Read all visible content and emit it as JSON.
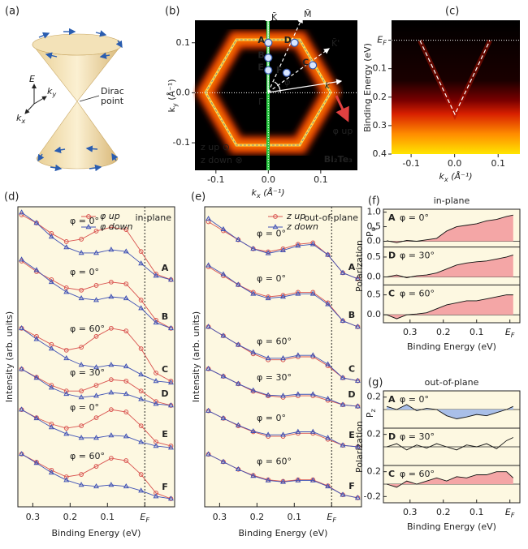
{
  "panel_a": {
    "label": "(a)",
    "energy_axis": "E",
    "ky_axis": {
      "main": "k",
      "sub": "y"
    },
    "kx_axis": {
      "main": "k",
      "sub": "x"
    },
    "dirac_point": [
      "Dirac",
      "point"
    ]
  },
  "panel_b": {
    "label": "(b)",
    "x_label": {
      "main": "k",
      "sub": "x",
      "rest": " (Å⁻¹)"
    },
    "y_label": {
      "main": "k",
      "sub": "y",
      "rest": " (Å⁻¹)"
    },
    "xlim": [
      -0.14,
      0.17
    ],
    "ylim": [
      -0.155,
      0.145
    ],
    "xticks": [
      -0.1,
      {
        "value": 0,
        "label": "0.0"
      },
      0.1
    ],
    "yticks": [
      0.1,
      {
        "value": 0,
        "label": "0.0"
      },
      -0.1
    ],
    "material": "Bi₂Te₃",
    "points": {
      "labels": [
        "A",
        "B",
        "E",
        "D",
        "F",
        "C"
      ],
      "kx": [
        0,
        0,
        0,
        0.05,
        0.035,
        0.085
      ],
      "ky": [
        0.1,
        0.07,
        0.045,
        0.1,
        0.04,
        0.055
      ]
    },
    "symbols": {
      "K": "K̄",
      "M": "M̄",
      "K_prime": "K̄'",
      "Gamma": "Γ̄",
      "phi": "φ",
      "k": "k",
      "phi_up": "φ up",
      "z_up": "z up ⊙",
      "z_down": "z down ⊗"
    }
  },
  "panel_c": {
    "label": "(c)",
    "x_label": {
      "main": "k",
      "sub": "x",
      "rest": " (Å⁻¹)"
    },
    "y_label": "Binding Energy (eV)",
    "xlim": [
      -0.145,
      0.15
    ],
    "ylim": [
      -0.07,
      0.4
    ],
    "xticks": [
      -0.1,
      {
        "value": 0,
        "label": "0.0"
      },
      0.1
    ],
    "yticks": [
      {
        "value": 0,
        "label": {
          "main": "E",
          "sub": "F"
        }
      },
      0.1,
      0.2,
      0.3,
      0.4
    ]
  },
  "panel_d": {
    "label": "(d)",
    "x_label": "Binding Energy (eV)",
    "y_label": "Intensity (arb. units)",
    "region": "in-plane",
    "series_names": [
      "φ up",
      "φ down"
    ],
    "colors": [
      "#d9534f",
      "#3f51b5"
    ],
    "markers": [
      "circle",
      "triangle"
    ],
    "xlim": [
      0.34,
      -0.08
    ],
    "ylim": [
      0,
      100
    ],
    "xticks": [
      0.3,
      0.2,
      0.1,
      {
        "value": 0,
        "label": {
          "main": "E",
          "sub": "F"
        }
      }
    ],
    "x": [
      0.33,
      0.29,
      0.25,
      0.21,
      0.17,
      0.13,
      0.09,
      0.05,
      0.01,
      -0.03,
      -0.07
    ],
    "spectra": [
      {
        "point": "A",
        "angle": "φ = 0°",
        "up": [
          97.3,
          94.6,
          91.1,
          88.4,
          89.2,
          91.9,
          93.2,
          92.4,
          85.1,
          77.6,
          75.7
        ],
        "down": [
          98.1,
          94.6,
          90.0,
          86.5,
          84.6,
          84.6,
          85.7,
          85.1,
          81.1,
          77.0,
          75.7
        ]
      },
      {
        "point": "B",
        "angle": "φ = 0°",
        "up": [
          81.9,
          78.4,
          75.7,
          73.0,
          72.2,
          73.8,
          74.9,
          74.3,
          68.9,
          62.2,
          59.5
        ],
        "down": [
          82.4,
          78.9,
          74.9,
          71.6,
          69.5,
          68.9,
          70.0,
          69.5,
          66.2,
          61.4,
          59.5
        ]
      },
      {
        "point": "C",
        "angle": "φ = 60°",
        "up": [
          59.5,
          56.8,
          54.1,
          52.2,
          53.2,
          56.8,
          59.5,
          58.6,
          52.7,
          44.6,
          41.9
        ],
        "down": [
          59.5,
          55.9,
          52.7,
          49.5,
          47.3,
          46.5,
          47.3,
          46.8,
          44.1,
          41.9,
          41.4
        ]
      },
      {
        "point": "D",
        "angle": "φ = 30°",
        "up": [
          45.9,
          43.2,
          40.5,
          38.6,
          38.6,
          40.5,
          42.4,
          41.9,
          38.6,
          35.1,
          33.8
        ],
        "down": [
          45.9,
          43.0,
          39.7,
          37.6,
          36.5,
          37.0,
          38.1,
          37.6,
          35.9,
          34.3,
          33.8
        ]
      },
      {
        "point": "E",
        "angle": "φ = 0°",
        "up": [
          32.4,
          29.7,
          27.6,
          26.2,
          27.0,
          29.7,
          32.4,
          31.6,
          27.0,
          21.6,
          20.3
        ],
        "down": [
          32.4,
          29.5,
          26.5,
          24.3,
          23.0,
          23.0,
          23.8,
          23.5,
          21.6,
          20.3,
          19.7
        ]
      },
      {
        "point": "F",
        "angle": "φ = 60°",
        "up": [
          17.6,
          14.9,
          12.2,
          10.0,
          10.8,
          13.5,
          16.2,
          15.4,
          10.8,
          4.6,
          2.7
        ],
        "down": [
          17.6,
          14.6,
          11.4,
          8.9,
          7.3,
          6.8,
          7.3,
          6.8,
          5.4,
          3.5,
          2.7
        ]
      }
    ]
  },
  "panel_e": {
    "label": "(e)",
    "x_label": "Binding Energy (eV)",
    "y_label": "Intensity (arb. units)",
    "region": "out-of-plane",
    "series_names": [
      "z up",
      "z down"
    ],
    "colors": [
      "#d9534f",
      "#3f51b5"
    ],
    "markers": [
      "circle",
      "triangle"
    ],
    "xlim": [
      0.34,
      -0.08
    ],
    "ylim": [
      0,
      100
    ],
    "xticks": [
      0.3,
      0.2,
      0.1,
      {
        "value": 0,
        "label": {
          "main": "E",
          "sub": "F"
        }
      }
    ],
    "x": [
      0.33,
      0.29,
      0.25,
      0.21,
      0.17,
      0.13,
      0.09,
      0.05,
      0.01,
      -0.03,
      -0.07
    ],
    "spectra": [
      {
        "point": "A",
        "angle": "φ = 0°",
        "up": [
          95,
          92,
          89,
          86,
          85,
          86,
          87.5,
          88,
          84,
          78,
          76
        ],
        "down": [
          96,
          92.5,
          89,
          86,
          84.5,
          85.5,
          87,
          87.5,
          84,
          78,
          76
        ]
      },
      {
        "point": "B",
        "angle": "φ = 0°",
        "up": [
          80,
          77,
          74,
          71.5,
          70,
          70.5,
          71.5,
          71.5,
          68,
          62,
          60
        ],
        "down": [
          80.5,
          77.5,
          74,
          71,
          69.5,
          70,
          71,
          71,
          67.5,
          62,
          60
        ]
      },
      {
        "point": "C",
        "angle": "φ = 60°",
        "up": [
          60,
          57,
          54,
          51,
          49,
          49,
          50,
          50,
          47,
          43,
          42
        ],
        "down": [
          60,
          57,
          54,
          51.5,
          49.5,
          49.5,
          50.5,
          50.5,
          47.5,
          43,
          42
        ]
      },
      {
        "point": "D",
        "angle": "φ = 30°",
        "up": [
          46,
          43.5,
          41,
          38.5,
          37,
          36.5,
          37,
          37,
          35.5,
          34,
          33.5
        ],
        "down": [
          46,
          43.5,
          41,
          38.8,
          37.2,
          37,
          37.5,
          37.5,
          36,
          34,
          33.5
        ]
      },
      {
        "point": "E",
        "angle": "φ = 0°",
        "up": [
          32,
          29.5,
          27,
          25,
          23.5,
          23.5,
          24.5,
          24.5,
          22.5,
          20.5,
          20
        ],
        "down": [
          32,
          29.5,
          27.2,
          25.2,
          24,
          24,
          25,
          25,
          23,
          20.5,
          20
        ]
      },
      {
        "point": "F",
        "angle": "φ = 60°",
        "up": [
          17.5,
          15,
          12.5,
          10.5,
          9,
          8.5,
          9,
          9,
          7,
          4,
          3
        ],
        "down": [
          17.5,
          15,
          12.5,
          10.3,
          8.8,
          8.3,
          8.8,
          8.8,
          6.8,
          4,
          3
        ]
      }
    ]
  },
  "panel_f": {
    "label": "(f)",
    "title": "in-plane",
    "y_label": "Polarization",
    "p_label": {
      "main": "P",
      "sub": "φ"
    },
    "x_label": "Binding Energy (eV)",
    "xlim": [
      0.38,
      -0.03
    ],
    "xticks": [
      0.3,
      0.2,
      0.1,
      {
        "value": 0,
        "label": {
          "main": "E",
          "sub": "F"
        }
      }
    ],
    "x": [
      0.37,
      0.34,
      0.31,
      0.28,
      0.25,
      0.22,
      0.19,
      0.16,
      0.13,
      0.1,
      0.07,
      0.04,
      0.01,
      -0.01
    ],
    "traces": [
      {
        "point": "A",
        "angle": "φ = 0°",
        "ylim": [
          -0.2,
          1.1
        ],
        "yticks": [
          {
            "value": 1,
            "label": "1.0"
          },
          0.5,
          {
            "value": 0,
            "label": "0.0"
          }
        ],
        "fill": "#f4a6a6",
        "values": [
          0.02,
          -0.05,
          0.03,
          0.0,
          0.05,
          0.1,
          0.35,
          0.5,
          0.55,
          0.6,
          0.7,
          0.75,
          0.85,
          0.9
        ]
      },
      {
        "point": "D",
        "angle": "φ = 30°",
        "ylim": [
          -0.2,
          0.75
        ],
        "yticks": [
          0.5,
          {
            "value": 0,
            "label": "0.0"
          }
        ],
        "fill": "#f4a6a6",
        "values": [
          0.0,
          0.05,
          -0.02,
          0.03,
          0.05,
          0.1,
          0.2,
          0.3,
          0.35,
          0.38,
          0.4,
          0.45,
          0.5,
          0.55
        ]
      },
      {
        "point": "C",
        "angle": "φ = 60°",
        "ylim": [
          -0.2,
          0.75
        ],
        "yticks": [
          0.5,
          {
            "value": 0,
            "label": "0.0"
          }
        ],
        "fill": "#f4a6a6",
        "values": [
          0.0,
          -0.1,
          0.0,
          0.02,
          0.05,
          0.15,
          0.25,
          0.3,
          0.35,
          0.35,
          0.4,
          0.45,
          0.5,
          0.5
        ]
      }
    ]
  },
  "panel_g": {
    "label": "(g)",
    "title": "out-of-plane",
    "y_label": "Polarization",
    "p_label": {
      "main": "P",
      "sub": "z"
    },
    "x_label": "Binding Energy (eV)",
    "xlim": [
      0.38,
      -0.03
    ],
    "xticks": [
      0.3,
      0.2,
      0.1,
      {
        "value": 0,
        "label": {
          "main": "E",
          "sub": "F"
        }
      }
    ],
    "x": [
      0.37,
      0.34,
      0.31,
      0.28,
      0.25,
      0.22,
      0.19,
      0.16,
      0.13,
      0.1,
      0.07,
      0.04,
      0.01,
      -0.01
    ],
    "traces": [
      {
        "point": "A",
        "angle": "φ = 0°",
        "ylim": [
          -0.3,
          0.3
        ],
        "yticks": [
          0.2
        ],
        "fill": "#a9bfe8",
        "values": [
          0.05,
          0.0,
          0.08,
          -0.02,
          0.02,
          0.0,
          -0.1,
          -0.15,
          -0.12,
          -0.08,
          -0.1,
          -0.05,
          0.0,
          0.05
        ]
      },
      {
        "point": "D",
        "angle": "φ = 30°",
        "ylim": [
          -0.3,
          0.3
        ],
        "yticks": [
          0.2
        ],
        "values": [
          0.0,
          0.05,
          -0.05,
          0.03,
          -0.02,
          0.05,
          0.0,
          -0.05,
          0.03,
          0.0,
          0.05,
          -0.03,
          0.1,
          0.15
        ]
      },
      {
        "point": "C",
        "angle": "φ = 60°",
        "ylim": [
          -0.3,
          0.3
        ],
        "yticks": [
          0.2,
          -0.2
        ],
        "fill": "#f4a6a6",
        "values": [
          0.0,
          -0.05,
          0.05,
          0.0,
          0.05,
          0.1,
          0.05,
          0.12,
          0.1,
          0.15,
          0.15,
          0.2,
          0.2,
          0.1
        ]
      }
    ]
  }
}
